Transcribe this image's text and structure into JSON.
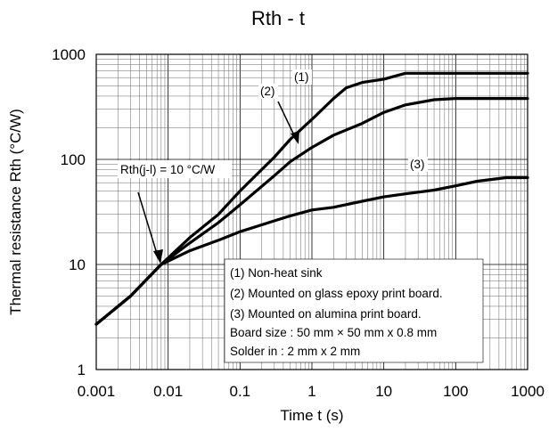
{
  "chart_data": {
    "type": "line",
    "title": "Rth - t",
    "xlabel": "Time  t (s)",
    "ylabel": "Thermal resistance  Rth (°C/W)",
    "xscale": "log",
    "yscale": "log",
    "xlim": [
      0.001,
      1000
    ],
    "ylim": [
      1,
      1000
    ],
    "grid": true,
    "x_ticks": [
      "0.001",
      "0.01",
      "0.1",
      "1",
      "10",
      "100",
      "1000"
    ],
    "y_ticks": [
      "1",
      "10",
      "100",
      "1000"
    ],
    "series": [
      {
        "name": "(1)",
        "x": [
          0.001,
          0.003,
          0.008,
          0.02,
          0.05,
          0.1,
          0.3,
          0.5,
          1,
          2,
          3,
          5,
          10,
          20,
          50,
          100,
          1000
        ],
        "y": [
          2.7,
          5,
          10,
          18,
          30,
          50,
          105,
          155,
          240,
          380,
          480,
          540,
          580,
          660,
          660,
          660,
          660
        ]
      },
      {
        "name": "(2)",
        "x": [
          0.001,
          0.003,
          0.008,
          0.02,
          0.05,
          0.1,
          0.3,
          0.5,
          1,
          2,
          5,
          10,
          20,
          50,
          100,
          1000
        ],
        "y": [
          2.7,
          5,
          10,
          16,
          25,
          37,
          70,
          95,
          130,
          170,
          220,
          280,
          330,
          370,
          380,
          380
        ]
      },
      {
        "name": "(3)",
        "x": [
          0.001,
          0.003,
          0.008,
          0.02,
          0.05,
          0.1,
          0.3,
          0.5,
          1,
          2,
          5,
          10,
          20,
          50,
          100,
          200,
          500,
          1000
        ],
        "y": [
          2.7,
          5,
          10,
          13.5,
          17,
          20.5,
          26,
          29,
          33,
          35,
          40,
          44,
          47,
          51,
          56,
          62,
          67,
          67
        ]
      }
    ],
    "annotations": {
      "rth_jl": "Rth(j-l) = 10 °C/W",
      "label1": "(1)",
      "label2": "(2)",
      "label3": "(3)"
    },
    "legend": [
      "(1) Non-heat sink",
      "(2) Mounted on glass epoxy print board.",
      "(3) Mounted on alumina print board.",
      "Board size : 50 mm × 50 mm x 0.8 mm",
      "Solder in : 2 mm x 2 mm"
    ]
  },
  "colors": {
    "line": "#000000",
    "background": "#ffffff",
    "grid": "#000000"
  }
}
